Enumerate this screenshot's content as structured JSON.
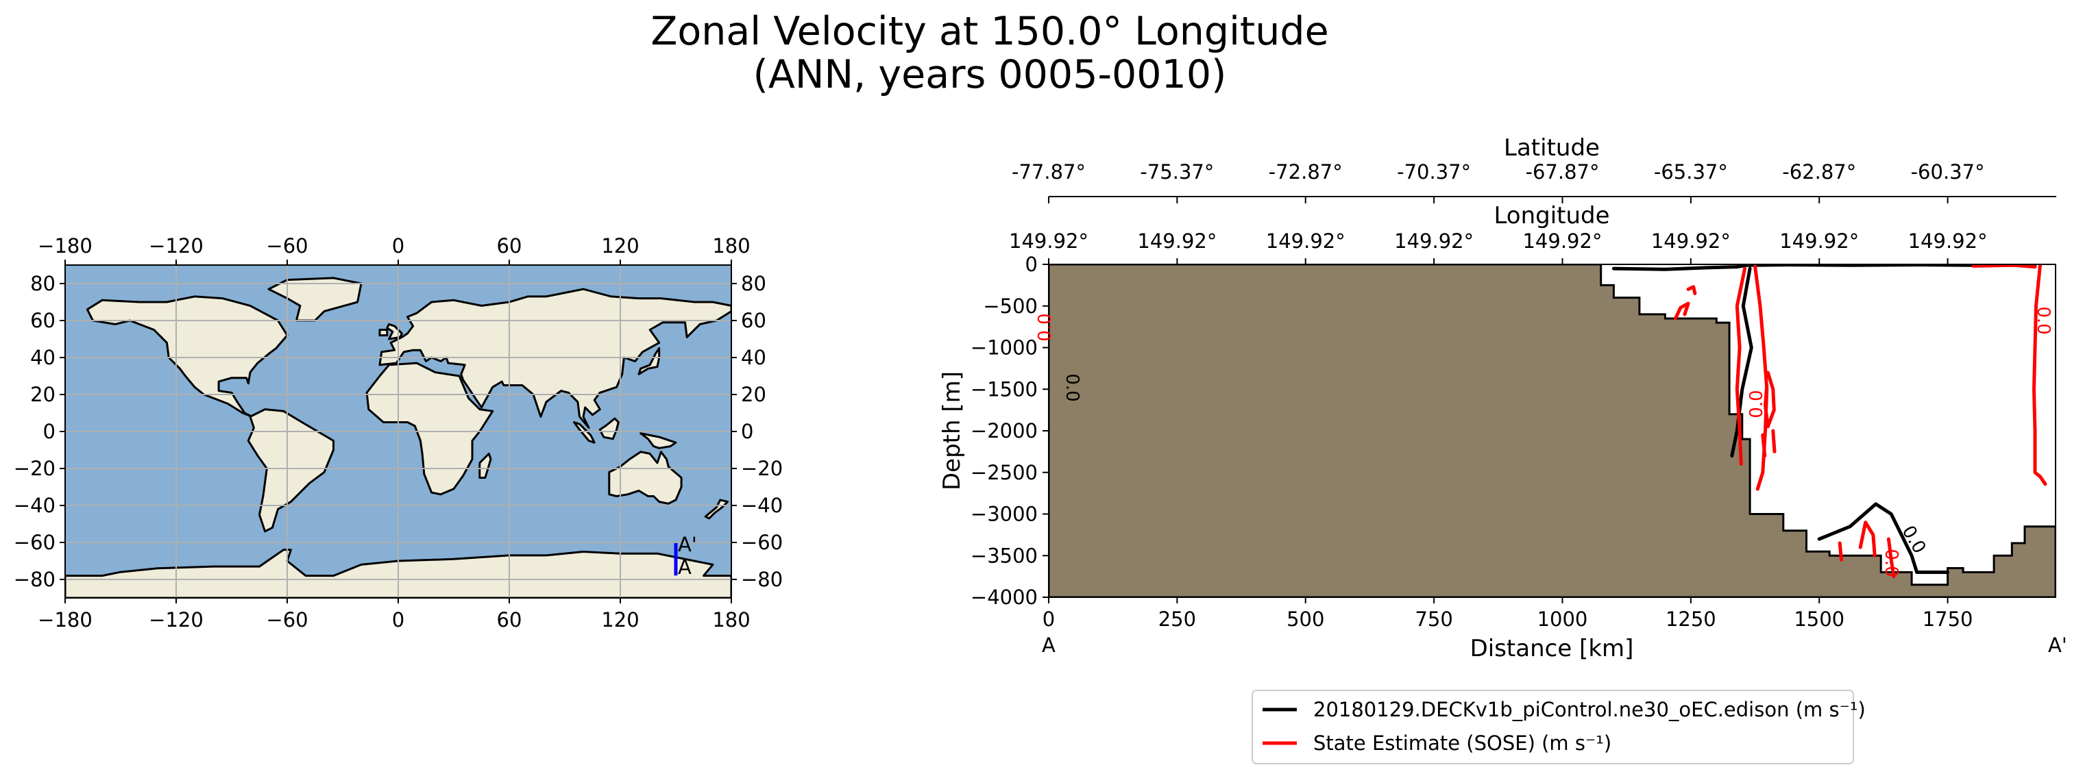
{
  "chart_data": {
    "title_line1": "Zonal Velocity at 150.0° Longitude",
    "title_line2": "(ANN, years 0005-0010)",
    "map": {
      "type": "map",
      "x_ticks": [
        "−180",
        "−120",
        "−60",
        "0",
        "60",
        "120",
        "180"
      ],
      "y_ticks": [
        "80",
        "60",
        "40",
        "20",
        "0",
        "−20",
        "−40",
        "−60",
        "−80"
      ],
      "transect": {
        "lon": 150,
        "lat_start": -77.87,
        "lat_end": -60.37,
        "start_label": "A",
        "end_label": "A'"
      },
      "colors": {
        "ocean": "#87b0d4",
        "land": "#efecda",
        "coast": "#000000",
        "grid": "#b0b0b0",
        "transect": "#0000ff"
      }
    },
    "section": {
      "type": "contour",
      "xlabel": "Distance [km]",
      "ylabel": "Depth [m]",
      "xlim": [
        0,
        1960
      ],
      "ylim": [
        -4000,
        0
      ],
      "x_ticks": [
        0,
        250,
        500,
        750,
        1000,
        1250,
        1500,
        1750
      ],
      "y_ticks": [
        0,
        -500,
        -1000,
        -1500,
        -2000,
        -2500,
        -3000,
        -3500,
        -4000
      ],
      "x_tick_labels": [
        "0",
        "250",
        "500",
        "750",
        "1000",
        "1250",
        "1500",
        "1750"
      ],
      "y_tick_labels": [
        "0",
        "−500",
        "−1000",
        "−1500",
        "−2000",
        "−2500",
        "−3000",
        "−3500",
        "−4000"
      ],
      "start_label": "A",
      "end_label": "A'",
      "latitude_axis": {
        "label": "Latitude",
        "ticks": [
          "-77.87°",
          "-75.37°",
          "-72.87°",
          "-70.37°",
          "-67.87°",
          "-65.37°",
          "-62.87°",
          "-60.37°"
        ]
      },
      "longitude_axis": {
        "label": "Longitude",
        "ticks": [
          "149.92°",
          "149.92°",
          "149.92°",
          "149.92°",
          "149.92°",
          "149.92°",
          "149.92°",
          "149.92°"
        ]
      },
      "bathymetry": [
        [
          1075,
          0
        ],
        [
          1075,
          -250
        ],
        [
          1100,
          -250
        ],
        [
          1100,
          -400
        ],
        [
          1150,
          -400
        ],
        [
          1150,
          -600
        ],
        [
          1200,
          -600
        ],
        [
          1200,
          -650
        ],
        [
          1300,
          -650
        ],
        [
          1300,
          -700
        ],
        [
          1325,
          -700
        ],
        [
          1325,
          -1800
        ],
        [
          1350,
          -1800
        ],
        [
          1350,
          -2100
        ],
        [
          1365,
          -2100
        ],
        [
          1365,
          -3000
        ],
        [
          1430,
          -3000
        ],
        [
          1430,
          -3200
        ],
        [
          1475,
          -3200
        ],
        [
          1475,
          -3450
        ],
        [
          1520,
          -3450
        ],
        [
          1520,
          -3500
        ],
        [
          1620,
          -3500
        ],
        [
          1620,
          -3700
        ],
        [
          1680,
          -3700
        ],
        [
          1680,
          -3850
        ],
        [
          1750,
          -3850
        ],
        [
          1750,
          -3650
        ],
        [
          1780,
          -3650
        ],
        [
          1780,
          -3700
        ],
        [
          1840,
          -3700
        ],
        [
          1840,
          -3500
        ],
        [
          1875,
          -3500
        ],
        [
          1875,
          -3350
        ],
        [
          1900,
          -3350
        ],
        [
          1900,
          -3150
        ],
        [
          1960,
          -3150
        ]
      ],
      "contour_label": "0.0",
      "series": [
        {
          "name": "20180129.DECKv1b_piControl.ne30_oEC.edison (m s⁻¹)",
          "color": "#000000",
          "paths": [
            [
              [
                1365,
                -50
              ],
              [
                1352,
                -500
              ],
              [
                1368,
                -1000
              ],
              [
                1350,
                -1500
              ],
              [
                1340,
                -2000
              ],
              [
                1330,
                -2300
              ]
            ],
            [
              [
                1500,
                -3300
              ],
              [
                1560,
                -3150
              ],
              [
                1610,
                -2880
              ],
              [
                1640,
                -3000
              ],
              [
                1660,
                -3250
              ],
              [
                1680,
                -3500
              ],
              [
                1690,
                -3700
              ],
              [
                1750,
                -3700
              ]
            ],
            [
              [
                1100,
                -50
              ],
              [
                1200,
                -60
              ],
              [
                1280,
                -40
              ],
              [
                1340,
                -30
              ],
              [
                1360,
                -10
              ]
            ],
            [
              [
                1360,
                -10
              ],
              [
                1440,
                -5
              ],
              [
                1560,
                -10
              ],
              [
                1700,
                -5
              ],
              [
                1800,
                -10
              ],
              [
                1920,
                -5
              ]
            ]
          ]
        },
        {
          "name": "State Estimate (SOSE) (m s⁻¹)",
          "color": "#ff0000",
          "paths": [
            [
              [
                1355,
                -50
              ],
              [
                1340,
                -500
              ],
              [
                1345,
                -1000
              ],
              [
                1340,
                -1500
              ],
              [
                1345,
                -2000
              ],
              [
                1348,
                -2400
              ]
            ],
            [
              [
                1375,
                -20
              ],
              [
                1385,
                -500
              ],
              [
                1392,
                -1000
              ],
              [
                1398,
                -1500
              ],
              [
                1395,
                -2000
              ],
              [
                1390,
                -2500
              ],
              [
                1380,
                -2700
              ]
            ],
            [
              [
                1400,
                -1300
              ],
              [
                1410,
                -1500
              ],
              [
                1412,
                -1750
              ],
              [
                1400,
                -1950
              ],
              [
                1395,
                -1700
              ],
              [
                1398,
                -1450
              ]
            ],
            [
              [
                1930,
                -10
              ],
              [
                1922,
                -500
              ],
              [
                1920,
                -1000
              ],
              [
                1918,
                -1500
              ],
              [
                1920,
                -2000
              ],
              [
                1920,
                -2500
              ],
              [
                1930,
                -2550
              ],
              [
                1940,
                -2640
              ]
            ],
            [
              [
                1800,
                -20
              ],
              [
                1880,
                -10
              ],
              [
                1920,
                -30
              ]
            ],
            [
              [
                1220,
                -650
              ],
              [
                1230,
                -520
              ],
              [
                1245,
                -470
              ],
              [
                1238,
                -600
              ]
            ],
            [
              [
                1245,
                -300
              ],
              [
                1255,
                -270
              ],
              [
                1258,
                -350
              ]
            ],
            [
              [
                1580,
                -3400
              ],
              [
                1590,
                -3100
              ],
              [
                1605,
                -3250
              ],
              [
                1608,
                -3500
              ]
            ],
            [
              [
                1635,
                -3300
              ],
              [
                1640,
                -3550
              ],
              [
                1645,
                -3750
              ]
            ],
            [
              [
                1540,
                -3350
              ],
              [
                1543,
                -3550
              ]
            ],
            [
              [
                1390,
                -2050
              ],
              [
                1394,
                -2300
              ]
            ],
            [
              [
                1410,
                -2000
              ],
              [
                1413,
                -2250
              ]
            ]
          ]
        }
      ]
    }
  }
}
